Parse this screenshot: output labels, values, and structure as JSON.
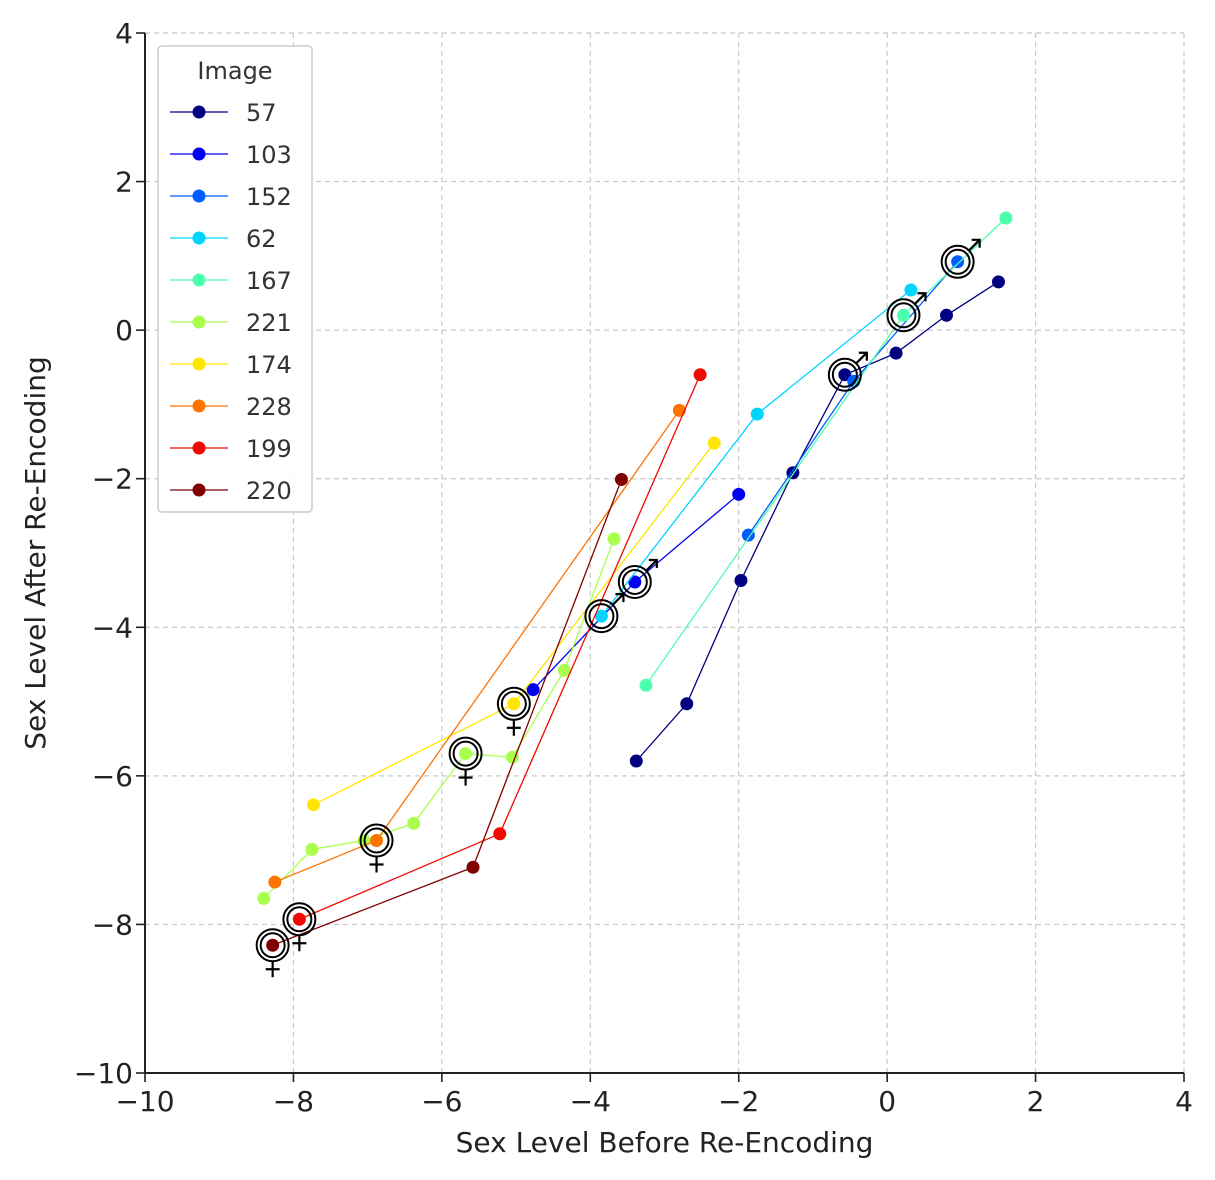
{
  "chart_data": {
    "type": "line",
    "title": "",
    "xlabel": "Sex Level Before Re-Encoding",
    "ylabel": "Sex Level After Re-Encoding",
    "xlim": [
      -10,
      4
    ],
    "ylim": [
      -10,
      4
    ],
    "xticks": [
      -10,
      -8,
      -6,
      -4,
      -2,
      0,
      2,
      4
    ],
    "yticks": [
      -10,
      -8,
      -6,
      -4,
      -2,
      0,
      2,
      4
    ],
    "xtick_labels": [
      "−10",
      "−8",
      "−6",
      "−4",
      "−2",
      "0",
      "2",
      "4"
    ],
    "ytick_labels": [
      "−10",
      "−8",
      "−6",
      "−4",
      "−2",
      "0",
      "2",
      "4"
    ],
    "grid": true,
    "legend": {
      "title": "Image",
      "position": "upper-left"
    },
    "series": [
      {
        "name": "57",
        "color": "#000080",
        "points": [
          [
            -3.38,
            -5.8
          ],
          [
            -2.7,
            -5.03
          ],
          [
            -1.97,
            -3.37
          ],
          [
            -1.27,
            -1.92
          ],
          [
            -0.57,
            -0.6
          ],
          [
            0.12,
            -0.31
          ],
          [
            0.8,
            0.2
          ],
          [
            1.5,
            0.65
          ]
        ],
        "marker_index": 4,
        "symbol": "♂"
      },
      {
        "name": "103",
        "color": "#0000f1",
        "points": [
          [
            -4.77,
            -4.84
          ],
          [
            -3.4,
            -3.39
          ],
          [
            -2.0,
            -2.21
          ]
        ],
        "marker_index": 1,
        "symbol": "♂"
      },
      {
        "name": "152",
        "color": "#005cff",
        "points": [
          [
            -1.87,
            -2.76
          ],
          [
            -0.45,
            -0.69
          ],
          [
            0.95,
            0.92
          ]
        ],
        "marker_index": 2,
        "symbol": "♂"
      },
      {
        "name": "62",
        "color": "#00d5ff",
        "points": [
          [
            -3.85,
            -3.85
          ],
          [
            -1.75,
            -1.13
          ],
          [
            0.32,
            0.54
          ]
        ],
        "marker_index": 0,
        "symbol": "♂"
      },
      {
        "name": "167",
        "color": "#4dffaa",
        "points": [
          [
            -3.25,
            -4.78
          ],
          [
            0.22,
            0.2
          ],
          [
            1.6,
            1.51
          ]
        ],
        "marker_index": 1,
        "symbol": "♂"
      },
      {
        "name": "221",
        "color": "#aaff4d",
        "points": [
          [
            -8.4,
            -7.65
          ],
          [
            -7.75,
            -6.99
          ],
          [
            -7.05,
            -6.87
          ],
          [
            -6.38,
            -6.64
          ],
          [
            -5.68,
            -5.7
          ],
          [
            -5.05,
            -5.75
          ],
          [
            -4.35,
            -4.58
          ],
          [
            -3.68,
            -2.81
          ]
        ],
        "marker_index": 4,
        "symbol": "♀"
      },
      {
        "name": "174",
        "color": "#ffe600",
        "points": [
          [
            -7.73,
            -6.39
          ],
          [
            -5.03,
            -5.03
          ],
          [
            -2.33,
            -1.52
          ]
        ],
        "marker_index": 1,
        "symbol": "♀"
      },
      {
        "name": "228",
        "color": "#ff7300",
        "points": [
          [
            -8.25,
            -7.43
          ],
          [
            -6.88,
            -6.87
          ],
          [
            -2.8,
            -1.08
          ]
        ],
        "marker_index": 1,
        "symbol": "♀"
      },
      {
        "name": "199",
        "color": "#f10800",
        "points": [
          [
            -7.92,
            -7.93
          ],
          [
            -5.22,
            -6.78
          ],
          [
            -2.52,
            -0.6
          ]
        ],
        "marker_index": 0,
        "symbol": "♀"
      },
      {
        "name": "220",
        "color": "#800000",
        "points": [
          [
            -8.28,
            -8.28
          ],
          [
            -5.58,
            -7.23
          ],
          [
            -3.58,
            -2.01
          ]
        ],
        "marker_index": 0,
        "symbol": "♀"
      }
    ]
  }
}
